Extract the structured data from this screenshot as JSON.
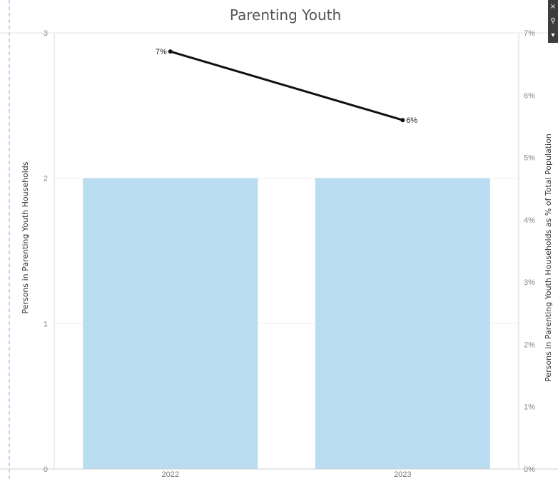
{
  "chart_data": {
    "type": "bar+line",
    "title": "Parenting Youth",
    "categories": [
      "2022",
      "2023"
    ],
    "bars": {
      "name": "Persons in Parenting Youth Households",
      "values": [
        2,
        2
      ],
      "color": "#b9dcf0"
    },
    "line": {
      "name": "Persons in Parenting Youth Households as % of Total Population",
      "values": [
        6.7,
        5.6
      ],
      "labels": [
        "7%",
        "6%"
      ],
      "color": "#111111"
    },
    "left_axis": {
      "label": "Persons in Parenting Youth Households",
      "range": [
        0,
        3
      ],
      "ticks": [
        "0",
        "1",
        "2",
        "3"
      ]
    },
    "right_axis": {
      "label": "Persons in Parenting Youth Households as % of Total Population",
      "range": [
        0,
        7
      ],
      "ticks": [
        "0%",
        "1%",
        "2%",
        "3%",
        "4%",
        "5%",
        "6%",
        "7%"
      ]
    },
    "grid": true,
    "legend": "none"
  },
  "toolbar": {
    "close_icon": "×",
    "pin_icon": "⚲",
    "menu_icon": "▾"
  }
}
